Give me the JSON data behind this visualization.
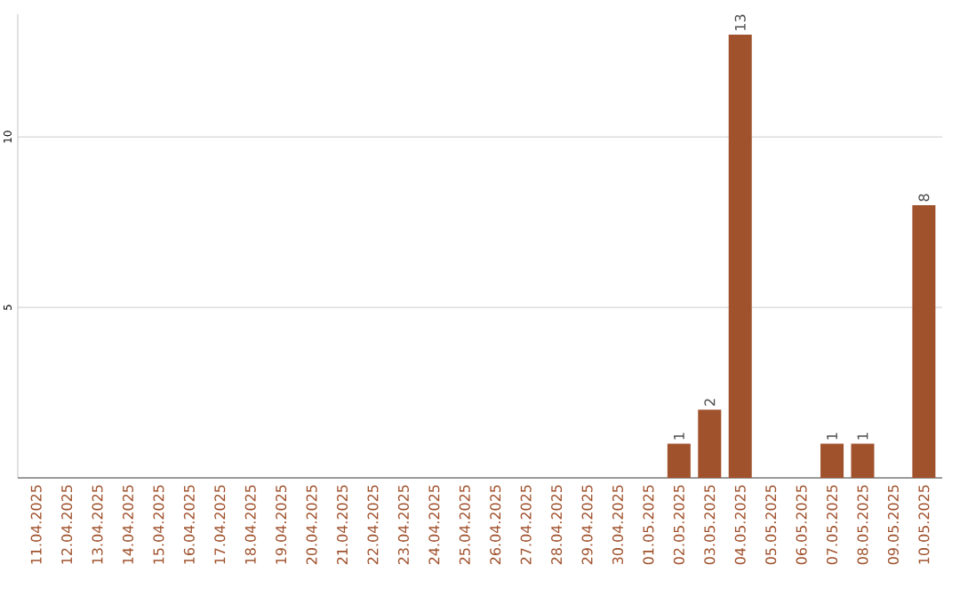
{
  "chart_data": {
    "type": "bar",
    "categories": [
      "11.04.2025",
      "12.04.2025",
      "13.04.2025",
      "14.04.2025",
      "15.04.2025",
      "16.04.2025",
      "17.04.2025",
      "18.04.2025",
      "19.04.2025",
      "20.04.2025",
      "21.04.2025",
      "22.04.2025",
      "23.04.2025",
      "24.04.2025",
      "25.04.2025",
      "26.04.2025",
      "27.04.2025",
      "28.04.2025",
      "29.04.2025",
      "30.04.2025",
      "01.05.2025",
      "02.05.2025",
      "03.05.2025",
      "04.05.2025",
      "05.05.2025",
      "06.05.2025",
      "07.05.2025",
      "08.05.2025",
      "09.05.2025",
      "10.05.2025"
    ],
    "values": [
      0,
      0,
      0,
      0,
      0,
      0,
      0,
      0,
      0,
      0,
      0,
      0,
      0,
      0,
      0,
      0,
      0,
      0,
      0,
      0,
      0,
      1,
      2,
      13,
      0,
      0,
      1,
      1,
      0,
      8
    ],
    "value_labels": [
      null,
      null,
      null,
      null,
      null,
      null,
      null,
      null,
      null,
      null,
      null,
      null,
      null,
      null,
      null,
      null,
      null,
      null,
      null,
      null,
      null,
      "1",
      "2",
      "13",
      null,
      null,
      "1",
      "1",
      null,
      "8"
    ],
    "color": "#a0522d",
    "ylim": [
      0,
      13.6
    ],
    "yticks": [
      5,
      10
    ],
    "grid": "y"
  }
}
